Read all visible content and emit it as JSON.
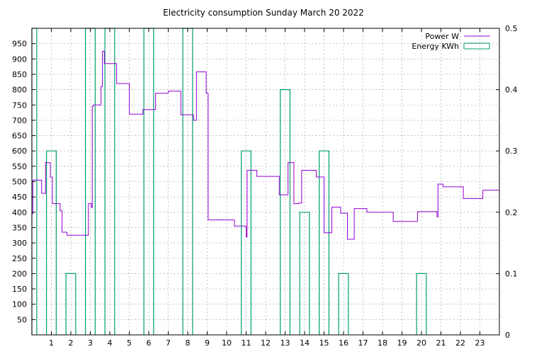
{
  "chart_data": {
    "type": "line",
    "title": "Electricity consumption Sunday March 20 2022",
    "xlabel": "",
    "ylabel": "",
    "y2label": "",
    "xlim": [
      0,
      24
    ],
    "ylim": [
      0,
      1000
    ],
    "y2lim": [
      0,
      0.5
    ],
    "x_ticks": [
      1,
      2,
      3,
      4,
      5,
      6,
      7,
      8,
      9,
      10,
      11,
      12,
      13,
      14,
      15,
      16,
      17,
      18,
      19,
      20,
      21,
      22,
      23
    ],
    "y_ticks": [
      50,
      100,
      150,
      200,
      250,
      300,
      350,
      400,
      450,
      500,
      550,
      600,
      650,
      700,
      750,
      800,
      850,
      900,
      950
    ],
    "y2_ticks": [
      "0",
      "0.1",
      "0.2",
      "0.3",
      "0.4",
      "0.5"
    ],
    "grid": true,
    "legend_position": "top-right",
    "colors": {
      "power": "#9400d3",
      "energy": "#009e73",
      "grid": "#a0a0a0"
    },
    "series": [
      {
        "name": "Power W",
        "axis": "y1",
        "style": "steps",
        "points": [
          [
            0.0,
            395
          ],
          [
            0.05,
            505
          ],
          [
            0.5,
            462
          ],
          [
            0.7,
            562
          ],
          [
            0.95,
            515
          ],
          [
            1.05,
            428
          ],
          [
            1.45,
            405
          ],
          [
            1.55,
            335
          ],
          [
            1.8,
            325
          ],
          [
            2.5,
            325
          ],
          [
            2.9,
            428
          ],
          [
            3.05,
            415
          ],
          [
            3.1,
            745
          ],
          [
            3.15,
            750
          ],
          [
            3.55,
            810
          ],
          [
            3.62,
            925
          ],
          [
            3.72,
            885
          ],
          [
            4.3,
            885
          ],
          [
            4.35,
            820
          ],
          [
            5.0,
            720
          ],
          [
            5.7,
            735
          ],
          [
            6.3,
            735
          ],
          [
            6.35,
            788
          ],
          [
            7.0,
            795
          ],
          [
            7.65,
            718
          ],
          [
            8.3,
            700
          ],
          [
            8.45,
            858
          ],
          [
            8.95,
            788
          ],
          [
            9.05,
            375
          ],
          [
            10.3,
            375
          ],
          [
            10.4,
            355
          ],
          [
            11.0,
            320
          ],
          [
            11.05,
            537
          ],
          [
            11.55,
            517
          ],
          [
            12.7,
            457
          ],
          [
            13.15,
            562
          ],
          [
            13.45,
            428
          ],
          [
            13.7,
            430
          ],
          [
            13.85,
            537
          ],
          [
            14.6,
            515
          ],
          [
            15.0,
            333
          ],
          [
            15.4,
            417
          ],
          [
            15.85,
            397
          ],
          [
            16.2,
            312
          ],
          [
            16.55,
            412
          ],
          [
            17.2,
            400
          ],
          [
            18.55,
            370
          ],
          [
            19.8,
            402
          ],
          [
            20.8,
            385
          ],
          [
            20.85,
            492
          ],
          [
            21.1,
            483
          ],
          [
            22.15,
            445
          ],
          [
            23.15,
            472
          ],
          [
            24.0,
            472
          ]
        ]
      },
      {
        "name": "Energy KWh",
        "axis": "y2",
        "style": "impulse_boxes",
        "bars": [
          {
            "x_start": 0.0,
            "x_end": 0.25,
            "value": 0.5
          },
          {
            "x_start": 0.75,
            "x_end": 1.25,
            "value": 0.3
          },
          {
            "x_start": 1.75,
            "x_end": 2.25,
            "value": 0.1
          },
          {
            "x_start": 2.75,
            "x_end": 3.25,
            "value": 0.5
          },
          {
            "x_start": 3.75,
            "x_end": 4.25,
            "value": 0.5
          },
          {
            "x_start": 5.75,
            "x_end": 6.25,
            "value": 0.5
          },
          {
            "x_start": 7.75,
            "x_end": 8.25,
            "value": 0.5
          },
          {
            "x_start": 10.75,
            "x_end": 11.25,
            "value": 0.3
          },
          {
            "x_start": 12.75,
            "x_end": 13.25,
            "value": 0.4
          },
          {
            "x_start": 13.75,
            "x_end": 14.25,
            "value": 0.2
          },
          {
            "x_start": 14.75,
            "x_end": 15.25,
            "value": 0.3
          },
          {
            "x_start": 15.75,
            "x_end": 16.25,
            "value": 0.1
          },
          {
            "x_start": 19.75,
            "x_end": 20.25,
            "value": 0.1
          }
        ]
      }
    ]
  }
}
